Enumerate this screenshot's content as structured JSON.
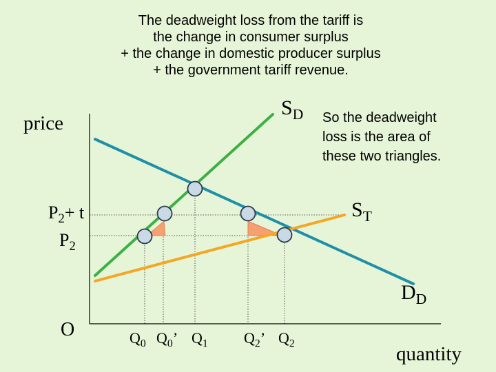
{
  "title_lines": [
    "The deadweight loss from the tariff is",
    "the change in consumer surplus",
    "+ the change in domestic producer surplus",
    "+ the government tariff revenue."
  ],
  "note_lines": [
    "So the deadweight",
    "loss is the area of",
    "these two triangles."
  ],
  "axes": {
    "y_label": "price",
    "x_label": "quantity",
    "origin": "O"
  },
  "price_labels": {
    "p2_plus_t": {
      "main": "P",
      "sub": "2",
      "tail": "+ t"
    },
    "p2": {
      "main": "P",
      "sub": "2"
    }
  },
  "quantity_labels": [
    {
      "main": "Q",
      "sub": "0",
      "sup": ""
    },
    {
      "main": "Q",
      "sub": "0",
      "sup": "’"
    },
    {
      "main": "Q",
      "sub": "1",
      "sup": ""
    },
    {
      "main": "Q",
      "sub": "2",
      "sup": "’"
    },
    {
      "main": "Q",
      "sub": "2",
      "sup": ""
    }
  ],
  "curve_labels": {
    "domestic_supply": {
      "main": "S",
      "sub": "D"
    },
    "world_supply_plus_tariff": {
      "main": "S",
      "sub": "T"
    },
    "demand": {
      "main": "D",
      "sub": "D"
    }
  },
  "colors": {
    "background": "#e6f5d8",
    "domestic_supply": "#3cb043",
    "demand": "#1f8fa8",
    "supply_with_tariff": "#f5a623",
    "triangle_fill": "#f4a070",
    "point_fill": "#c9d9e6",
    "guide_line": "#555555"
  }
}
